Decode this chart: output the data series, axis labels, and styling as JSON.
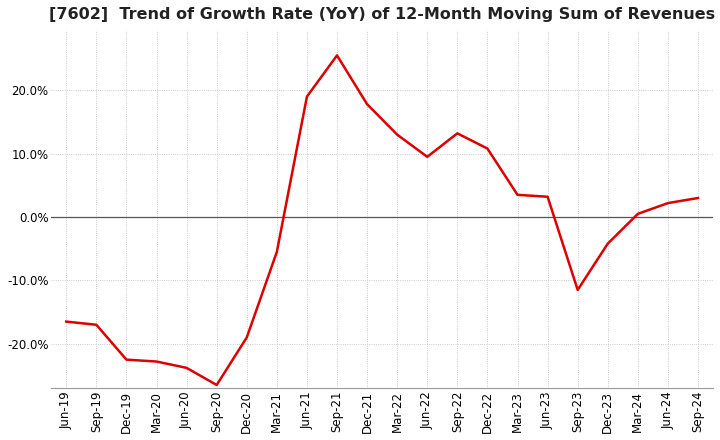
{
  "title": "[7602]  Trend of Growth Rate (YoY) of 12-Month Moving Sum of Revenues",
  "title_fontsize": 11.5,
  "line_color": "#dd0000",
  "background_color": "#ffffff",
  "plot_bg_color": "#ffffff",
  "grid_color": "#bbbbbb",
  "zero_line_color": "#555555",
  "ylim": [
    -0.27,
    0.295
  ],
  "yticks": [
    -0.2,
    -0.1,
    0.0,
    0.1,
    0.2
  ],
  "xlabels": [
    "Jun-19",
    "Sep-19",
    "Dec-19",
    "Mar-20",
    "Jun-20",
    "Sep-20",
    "Dec-20",
    "Mar-21",
    "Jun-21",
    "Sep-21",
    "Dec-21",
    "Mar-22",
    "Jun-22",
    "Sep-22",
    "Dec-22",
    "Mar-23",
    "Jun-23",
    "Sep-23",
    "Dec-23",
    "Mar-24",
    "Jun-24",
    "Sep-24"
  ],
  "yvalues": [
    -0.165,
    -0.17,
    -0.225,
    -0.228,
    -0.238,
    -0.265,
    -0.19,
    -0.055,
    0.19,
    0.255,
    0.178,
    0.13,
    0.095,
    0.132,
    0.108,
    0.035,
    0.032,
    -0.115,
    -0.042,
    0.005,
    0.022,
    0.03
  ],
  "tick_fontsize": 8.5,
  "linewidth": 1.8
}
